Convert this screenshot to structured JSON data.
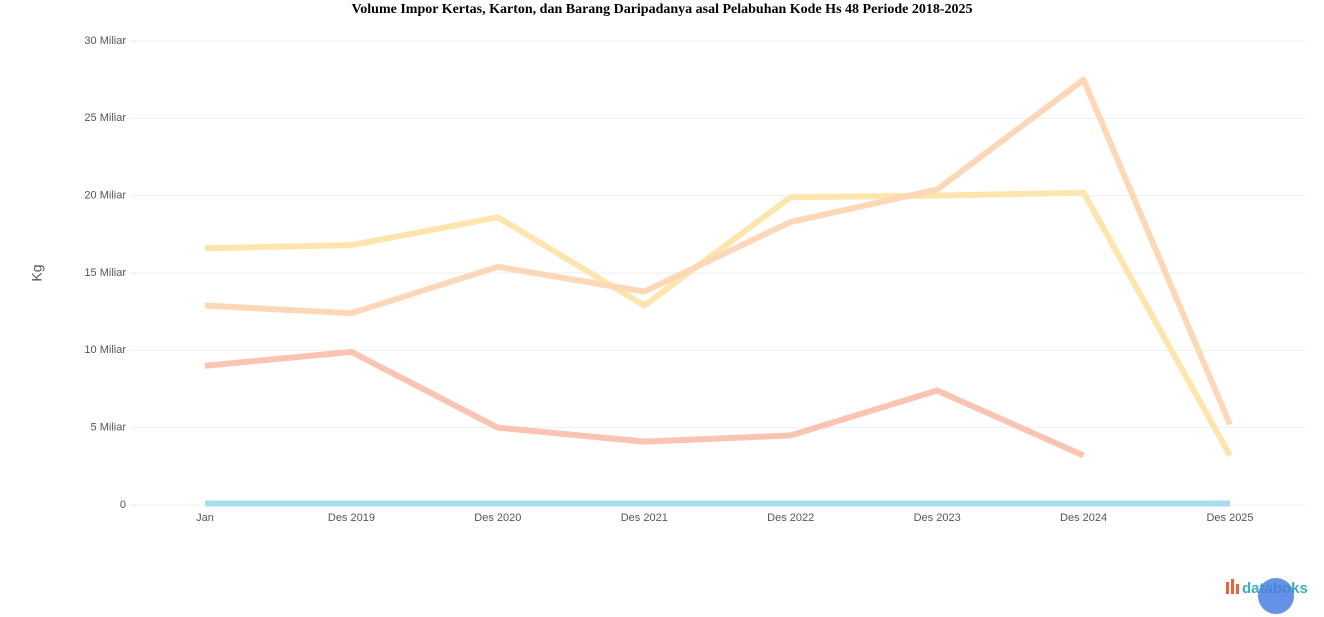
{
  "chart_data": {
    "type": "line",
    "title": "Volume Impor Kertas, Karton, dan Barang Daripadanya asal Pelabuhan Kode Hs 48 Periode 2018-2025",
    "y_label": "Kg",
    "categories": [
      "Jan",
      "Des 2019",
      "Des 2020",
      "Des 2021",
      "Des 2022",
      "Des 2023",
      "Des 2024",
      "Des 2025"
    ],
    "series": [
      {
        "color": "#fde6ad",
        "values": [
          16.6,
          16.8,
          18.6,
          12.9,
          19.9,
          20.0,
          20.2,
          3.2
        ]
      },
      {
        "color": "#fdd8b8",
        "values": [
          12.9,
          12.4,
          15.4,
          13.8,
          18.3,
          20.4,
          27.5,
          5.2
        ]
      },
      {
        "color": "#f9c5b2",
        "values": [
          9.0,
          9.9,
          5.0,
          4.1,
          4.5,
          7.4,
          3.2,
          null
        ]
      },
      {
        "color": "#a6dcf0",
        "values": [
          0.1,
          0.1,
          0.1,
          0.1,
          0.1,
          0.1,
          0.1,
          0.1
        ]
      }
    ],
    "ylim": [
      0,
      30
    ],
    "yticks": [
      0,
      {
        "value": 5,
        "label": "5 Miliar"
      },
      {
        "value": 10,
        "label": "10 Miliar"
      },
      {
        "value": 15,
        "label": "15 Miliar"
      },
      {
        "value": 20,
        "label": "20 Miliar"
      },
      {
        "value": 25,
        "label": "25 Miliar"
      },
      {
        "value": 30,
        "label": "30 Miliar"
      }
    ],
    "grid": true,
    "brand": "databoks"
  }
}
